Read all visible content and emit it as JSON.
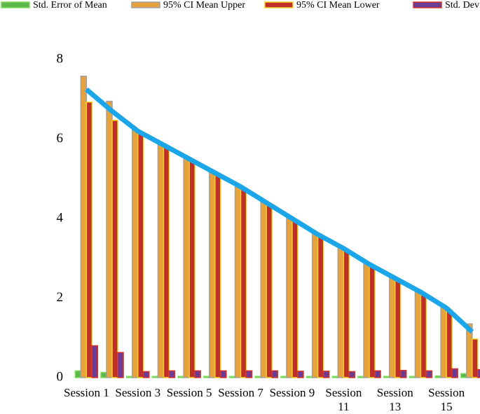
{
  "chart_data": {
    "type": "bar",
    "categories": [
      "Session 1",
      null,
      "Session 3",
      null,
      "Session 5",
      null,
      "Session 7",
      null,
      "Session 9",
      null,
      "Session 11",
      null,
      "Session 13",
      null,
      "Session 15",
      null
    ],
    "series": [
      {
        "name": "Std. Error of Mean",
        "color": "#5cb848",
        "values": [
          0.17,
          0.13,
          0.03,
          0.03,
          0.03,
          0.03,
          0.03,
          0.03,
          0.03,
          0.03,
          0.03,
          0.03,
          0.03,
          0.03,
          0.04,
          0.1
        ]
      },
      {
        "name": "95% CI Mean Upper",
        "color": "#e8a23c",
        "values": [
          7.58,
          6.95,
          6.25,
          5.9,
          5.55,
          5.2,
          4.85,
          4.45,
          4.05,
          3.65,
          3.3,
          2.9,
          2.55,
          2.2,
          1.8,
          1.35
        ]
      },
      {
        "name": "95% CI Mean Lower",
        "color": "#c0302a",
        "values": [
          6.93,
          6.47,
          6.15,
          5.82,
          5.45,
          5.1,
          4.75,
          4.35,
          3.95,
          3.55,
          3.2,
          2.8,
          2.45,
          2.1,
          1.7,
          0.97
        ]
      },
      {
        "name": "Std. Dev",
        "color": "#6a3c96",
        "values": [
          0.8,
          0.63,
          0.15,
          0.17,
          0.17,
          0.17,
          0.17,
          0.17,
          0.16,
          0.16,
          0.15,
          0.17,
          0.18,
          0.17,
          0.22,
          0.2
        ]
      },
      {
        "type": "line",
        "color": "#1ba6ea",
        "values": [
          7.25,
          6.7,
          6.2,
          5.85,
          5.5,
          5.15,
          4.8,
          4.4,
          4.0,
          3.6,
          3.25,
          2.85,
          2.5,
          2.15,
          1.75,
          1.15
        ]
      }
    ],
    "ylim": [
      0,
      8
    ],
    "yticks": [
      0,
      2,
      4,
      6,
      8
    ],
    "grid": false
  }
}
